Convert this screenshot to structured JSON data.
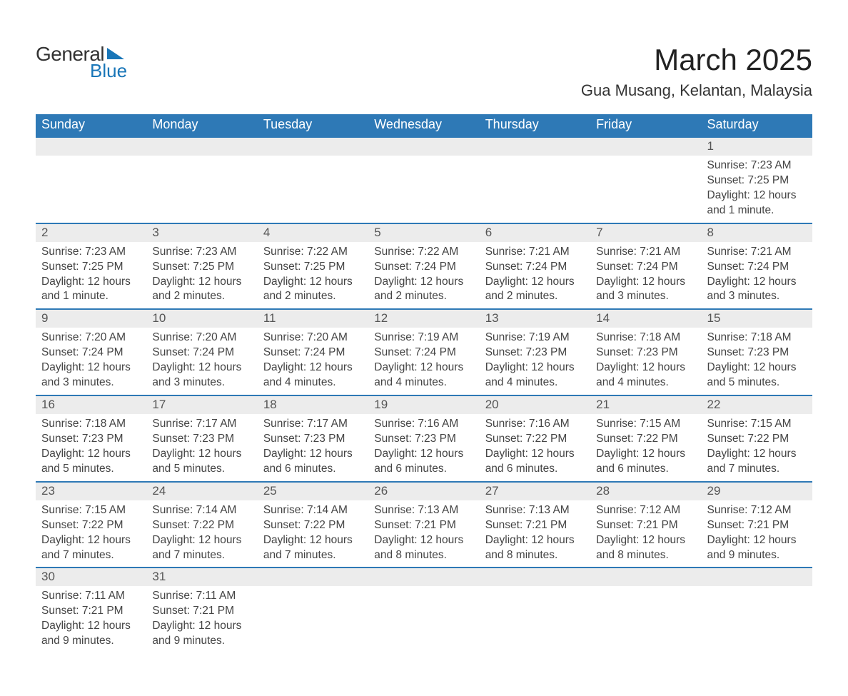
{
  "logo": {
    "brand1": "General",
    "brand2": "Blue"
  },
  "title": {
    "month": "March 2025",
    "location": "Gua Musang, Kelantan, Malaysia"
  },
  "weekdays": [
    "Sunday",
    "Monday",
    "Tuesday",
    "Wednesday",
    "Thursday",
    "Friday",
    "Saturday"
  ],
  "colors": {
    "header_bg": "#2e79b6",
    "header_text": "#ffffff",
    "row_separator": "#2e79b6",
    "daynum_bg": "#ececec",
    "body_text": "#444444",
    "logo_accent": "#1976b8"
  },
  "layout": {
    "columns": 7,
    "font_family": "Arial",
    "title_fontsize": 42,
    "location_fontsize": 22,
    "weekday_fontsize": 18,
    "cell_fontsize": 15.5
  },
  "weeks": [
    [
      null,
      null,
      null,
      null,
      null,
      null,
      {
        "n": "1",
        "sunrise": "Sunrise: 7:23 AM",
        "sunset": "Sunset: 7:25 PM",
        "daylight": "Daylight: 12 hours and 1 minute."
      }
    ],
    [
      {
        "n": "2",
        "sunrise": "Sunrise: 7:23 AM",
        "sunset": "Sunset: 7:25 PM",
        "daylight": "Daylight: 12 hours and 1 minute."
      },
      {
        "n": "3",
        "sunrise": "Sunrise: 7:23 AM",
        "sunset": "Sunset: 7:25 PM",
        "daylight": "Daylight: 12 hours and 2 minutes."
      },
      {
        "n": "4",
        "sunrise": "Sunrise: 7:22 AM",
        "sunset": "Sunset: 7:25 PM",
        "daylight": "Daylight: 12 hours and 2 minutes."
      },
      {
        "n": "5",
        "sunrise": "Sunrise: 7:22 AM",
        "sunset": "Sunset: 7:24 PM",
        "daylight": "Daylight: 12 hours and 2 minutes."
      },
      {
        "n": "6",
        "sunrise": "Sunrise: 7:21 AM",
        "sunset": "Sunset: 7:24 PM",
        "daylight": "Daylight: 12 hours and 2 minutes."
      },
      {
        "n": "7",
        "sunrise": "Sunrise: 7:21 AM",
        "sunset": "Sunset: 7:24 PM",
        "daylight": "Daylight: 12 hours and 3 minutes."
      },
      {
        "n": "8",
        "sunrise": "Sunrise: 7:21 AM",
        "sunset": "Sunset: 7:24 PM",
        "daylight": "Daylight: 12 hours and 3 minutes."
      }
    ],
    [
      {
        "n": "9",
        "sunrise": "Sunrise: 7:20 AM",
        "sunset": "Sunset: 7:24 PM",
        "daylight": "Daylight: 12 hours and 3 minutes."
      },
      {
        "n": "10",
        "sunrise": "Sunrise: 7:20 AM",
        "sunset": "Sunset: 7:24 PM",
        "daylight": "Daylight: 12 hours and 3 minutes."
      },
      {
        "n": "11",
        "sunrise": "Sunrise: 7:20 AM",
        "sunset": "Sunset: 7:24 PM",
        "daylight": "Daylight: 12 hours and 4 minutes."
      },
      {
        "n": "12",
        "sunrise": "Sunrise: 7:19 AM",
        "sunset": "Sunset: 7:24 PM",
        "daylight": "Daylight: 12 hours and 4 minutes."
      },
      {
        "n": "13",
        "sunrise": "Sunrise: 7:19 AM",
        "sunset": "Sunset: 7:23 PM",
        "daylight": "Daylight: 12 hours and 4 minutes."
      },
      {
        "n": "14",
        "sunrise": "Sunrise: 7:18 AM",
        "sunset": "Sunset: 7:23 PM",
        "daylight": "Daylight: 12 hours and 4 minutes."
      },
      {
        "n": "15",
        "sunrise": "Sunrise: 7:18 AM",
        "sunset": "Sunset: 7:23 PM",
        "daylight": "Daylight: 12 hours and 5 minutes."
      }
    ],
    [
      {
        "n": "16",
        "sunrise": "Sunrise: 7:18 AM",
        "sunset": "Sunset: 7:23 PM",
        "daylight": "Daylight: 12 hours and 5 minutes."
      },
      {
        "n": "17",
        "sunrise": "Sunrise: 7:17 AM",
        "sunset": "Sunset: 7:23 PM",
        "daylight": "Daylight: 12 hours and 5 minutes."
      },
      {
        "n": "18",
        "sunrise": "Sunrise: 7:17 AM",
        "sunset": "Sunset: 7:23 PM",
        "daylight": "Daylight: 12 hours and 6 minutes."
      },
      {
        "n": "19",
        "sunrise": "Sunrise: 7:16 AM",
        "sunset": "Sunset: 7:23 PM",
        "daylight": "Daylight: 12 hours and 6 minutes."
      },
      {
        "n": "20",
        "sunrise": "Sunrise: 7:16 AM",
        "sunset": "Sunset: 7:22 PM",
        "daylight": "Daylight: 12 hours and 6 minutes."
      },
      {
        "n": "21",
        "sunrise": "Sunrise: 7:15 AM",
        "sunset": "Sunset: 7:22 PM",
        "daylight": "Daylight: 12 hours and 6 minutes."
      },
      {
        "n": "22",
        "sunrise": "Sunrise: 7:15 AM",
        "sunset": "Sunset: 7:22 PM",
        "daylight": "Daylight: 12 hours and 7 minutes."
      }
    ],
    [
      {
        "n": "23",
        "sunrise": "Sunrise: 7:15 AM",
        "sunset": "Sunset: 7:22 PM",
        "daylight": "Daylight: 12 hours and 7 minutes."
      },
      {
        "n": "24",
        "sunrise": "Sunrise: 7:14 AM",
        "sunset": "Sunset: 7:22 PM",
        "daylight": "Daylight: 12 hours and 7 minutes."
      },
      {
        "n": "25",
        "sunrise": "Sunrise: 7:14 AM",
        "sunset": "Sunset: 7:22 PM",
        "daylight": "Daylight: 12 hours and 7 minutes."
      },
      {
        "n": "26",
        "sunrise": "Sunrise: 7:13 AM",
        "sunset": "Sunset: 7:21 PM",
        "daylight": "Daylight: 12 hours and 8 minutes."
      },
      {
        "n": "27",
        "sunrise": "Sunrise: 7:13 AM",
        "sunset": "Sunset: 7:21 PM",
        "daylight": "Daylight: 12 hours and 8 minutes."
      },
      {
        "n": "28",
        "sunrise": "Sunrise: 7:12 AM",
        "sunset": "Sunset: 7:21 PM",
        "daylight": "Daylight: 12 hours and 8 minutes."
      },
      {
        "n": "29",
        "sunrise": "Sunrise: 7:12 AM",
        "sunset": "Sunset: 7:21 PM",
        "daylight": "Daylight: 12 hours and 9 minutes."
      }
    ],
    [
      {
        "n": "30",
        "sunrise": "Sunrise: 7:11 AM",
        "sunset": "Sunset: 7:21 PM",
        "daylight": "Daylight: 12 hours and 9 minutes."
      },
      {
        "n": "31",
        "sunrise": "Sunrise: 7:11 AM",
        "sunset": "Sunset: 7:21 PM",
        "daylight": "Daylight: 12 hours and 9 minutes."
      },
      null,
      null,
      null,
      null,
      null
    ]
  ]
}
